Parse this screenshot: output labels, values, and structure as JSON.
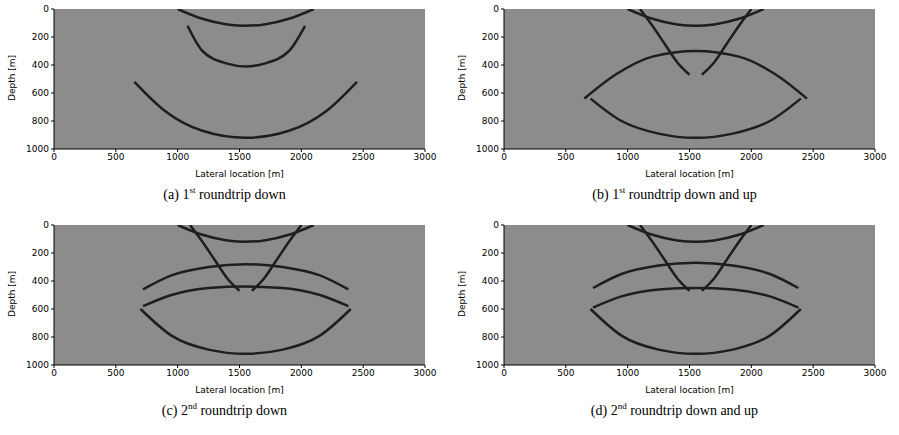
{
  "chart_data": [
    {
      "type": "line",
      "title": "(a) 1st roundtrip down",
      "xlabel": "Lateral location [m]",
      "ylabel": "Depth [m]",
      "xlim": [
        0,
        3000
      ],
      "xticks": [
        0,
        500,
        1000,
        1500,
        2000,
        2500,
        3000
      ],
      "ylim": [
        1000,
        0
      ],
      "yticks": [
        0,
        200,
        400,
        600,
        800,
        1000
      ],
      "series": [
        {
          "color": "#1e1e1e",
          "x": [
            1000,
            1200,
            1400,
            1550,
            1700,
            1900,
            2100
          ],
          "values": [
            0,
            70,
            110,
            120,
            110,
            70,
            0
          ]
        },
        {
          "color": "#1e1e1e",
          "x": [
            1080,
            1200,
            1400,
            1550,
            1700,
            1900,
            2030
          ],
          "values": [
            120,
            300,
            390,
            410,
            390,
            300,
            120
          ]
        },
        {
          "color": "#1e1e1e",
          "x": [
            650,
            900,
            1200,
            1550,
            1900,
            2200,
            2450
          ],
          "values": [
            520,
            730,
            870,
            920,
            870,
            730,
            520
          ]
        }
      ]
    },
    {
      "type": "line",
      "title": "(b) 1st roundtrip down and up",
      "xlabel": "Lateral location [m]",
      "ylabel": "Depth [m]",
      "xlim": [
        0,
        3000
      ],
      "xticks": [
        0,
        500,
        1000,
        1500,
        2000,
        2500,
        3000
      ],
      "ylim": [
        1000,
        0
      ],
      "yticks": [
        0,
        200,
        400,
        600,
        800,
        1000
      ],
      "series": [
        {
          "color": "#1e1e1e",
          "x": [
            1000,
            1200,
            1400,
            1550,
            1700,
            1900,
            2100
          ],
          "values": [
            0,
            70,
            110,
            120,
            110,
            70,
            0
          ]
        },
        {
          "color": "#1e1e1e",
          "x": [
            1100,
            1200,
            1300,
            1400,
            1500
          ],
          "values": [
            0,
            120,
            250,
            380,
            470
          ]
        },
        {
          "color": "#1e1e1e",
          "x": [
            1600,
            1700,
            1800,
            1900,
            2000
          ],
          "values": [
            470,
            380,
            250,
            120,
            0
          ]
        },
        {
          "color": "#1e1e1e",
          "x": [
            650,
            900,
            1200,
            1550,
            1900,
            2200,
            2450
          ],
          "values": [
            640,
            470,
            340,
            300,
            340,
            470,
            640
          ]
        },
        {
          "color": "#1e1e1e",
          "x": [
            700,
            950,
            1250,
            1550,
            1850,
            2150,
            2400
          ],
          "values": [
            640,
            800,
            890,
            920,
            890,
            800,
            640
          ]
        }
      ]
    },
    {
      "type": "line",
      "title": "(c) 2nd roundtrip down",
      "xlabel": "Lateral location [m]",
      "ylabel": "Depth [m]",
      "xlim": [
        0,
        3000
      ],
      "xticks": [
        0,
        500,
        1000,
        1500,
        2000,
        2500,
        3000
      ],
      "ylim": [
        1000,
        0
      ],
      "yticks": [
        0,
        200,
        400,
        600,
        800,
        1000
      ],
      "series": [
        {
          "color": "#1e1e1e",
          "x": [
            1000,
            1200,
            1400,
            1550,
            1700,
            1900,
            2100
          ],
          "values": [
            0,
            70,
            110,
            120,
            110,
            70,
            0
          ]
        },
        {
          "color": "#1e1e1e",
          "x": [
            1100,
            1200,
            1300,
            1400,
            1500
          ],
          "values": [
            0,
            120,
            250,
            380,
            470
          ]
        },
        {
          "color": "#1e1e1e",
          "x": [
            1600,
            1700,
            1800,
            1900,
            2000
          ],
          "values": [
            470,
            380,
            250,
            120,
            0
          ]
        },
        {
          "color": "#1e1e1e",
          "x": [
            720,
            950,
            1250,
            1550,
            1850,
            2150,
            2380
          ],
          "values": [
            460,
            360,
            300,
            280,
            300,
            360,
            460
          ]
        },
        {
          "color": "#1e1e1e",
          "x": [
            720,
            950,
            1250,
            1550,
            1850,
            2150,
            2380
          ],
          "values": [
            580,
            500,
            450,
            440,
            450,
            500,
            580
          ]
        },
        {
          "color": "#1e1e1e",
          "x": [
            700,
            950,
            1250,
            1550,
            1850,
            2150,
            2400
          ],
          "values": [
            600,
            790,
            890,
            920,
            890,
            790,
            600
          ]
        }
      ]
    },
    {
      "type": "line",
      "title": "(d) 2nd roundtrip down and up",
      "xlabel": "Lateral location [m]",
      "ylabel": "Depth [m]",
      "xlim": [
        0,
        3000
      ],
      "xticks": [
        0,
        500,
        1000,
        1500,
        2000,
        2500,
        3000
      ],
      "ylim": [
        1000,
        0
      ],
      "yticks": [
        0,
        200,
        400,
        600,
        800,
        1000
      ],
      "series": [
        {
          "color": "#1e1e1e",
          "x": [
            1000,
            1200,
            1400,
            1550,
            1700,
            1900,
            2100
          ],
          "values": [
            0,
            70,
            110,
            120,
            110,
            70,
            0
          ]
        },
        {
          "color": "#1e1e1e",
          "x": [
            1100,
            1200,
            1300,
            1400,
            1500
          ],
          "values": [
            0,
            120,
            250,
            380,
            470
          ]
        },
        {
          "color": "#1e1e1e",
          "x": [
            1600,
            1700,
            1800,
            1900,
            2000
          ],
          "values": [
            470,
            380,
            250,
            120,
            0
          ]
        },
        {
          "color": "#1e1e1e",
          "x": [
            720,
            950,
            1250,
            1550,
            1850,
            2150,
            2380
          ],
          "values": [
            450,
            350,
            290,
            270,
            290,
            350,
            450
          ]
        },
        {
          "color": "#1e1e1e",
          "x": [
            720,
            950,
            1250,
            1550,
            1850,
            2150,
            2380
          ],
          "values": [
            590,
            510,
            460,
            450,
            460,
            510,
            590
          ]
        },
        {
          "color": "#1e1e1e",
          "x": [
            700,
            950,
            1250,
            1550,
            1850,
            2150,
            2400
          ],
          "values": [
            600,
            790,
            890,
            920,
            890,
            790,
            600
          ]
        }
      ]
    }
  ]
}
